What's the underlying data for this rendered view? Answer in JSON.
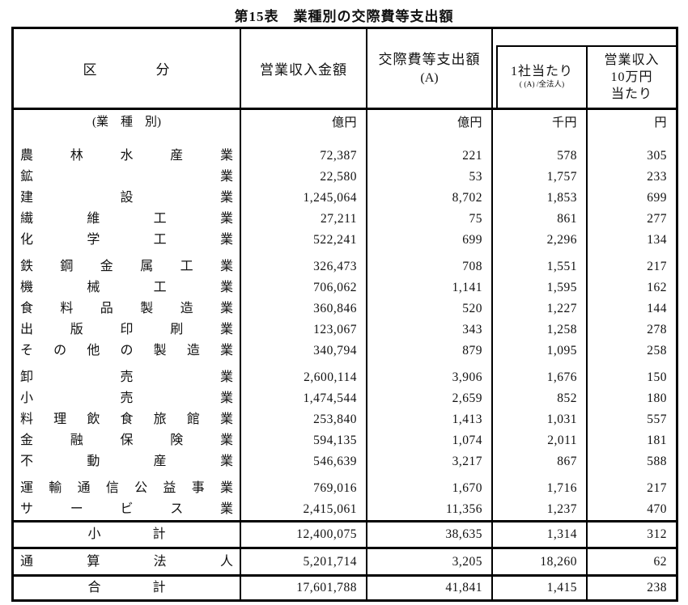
{
  "title": "第15表　業種別の交際費等支出額",
  "header": {
    "category": "区　　　　分",
    "operating_revenue": "営業収入金額",
    "expense_line1": "交際費等支出額",
    "expense_line2": "(A)",
    "per_company": "1社当たり",
    "per_company_sub": "( (A) /全法人)",
    "per_revenue_line1": "営業収入",
    "per_revenue_line2": "10万円",
    "per_revenue_line3": "当たり"
  },
  "units": {
    "label": "(業　種　別)",
    "operating_revenue": "億円",
    "expense": "億円",
    "per_company": "千円",
    "per_revenue": "円"
  },
  "groups": [
    {
      "rows": [
        {
          "label": "農林水産業",
          "operating_revenue": "72,387",
          "expense": "221",
          "per_company": "578",
          "per_revenue": "305"
        },
        {
          "label": "鉱業",
          "operating_revenue": "22,580",
          "expense": "53",
          "per_company": "1,757",
          "per_revenue": "233"
        },
        {
          "label": "建設業",
          "operating_revenue": "1,245,064",
          "expense": "8,702",
          "per_company": "1,853",
          "per_revenue": "699"
        },
        {
          "label": "繊維工業",
          "operating_revenue": "27,211",
          "expense": "75",
          "per_company": "861",
          "per_revenue": "277"
        },
        {
          "label": "化学工業",
          "operating_revenue": "522,241",
          "expense": "699",
          "per_company": "2,296",
          "per_revenue": "134"
        }
      ]
    },
    {
      "rows": [
        {
          "label": "鉄鋼金属工業",
          "operating_revenue": "326,473",
          "expense": "708",
          "per_company": "1,551",
          "per_revenue": "217"
        },
        {
          "label": "機械工業",
          "operating_revenue": "706,062",
          "expense": "1,141",
          "per_company": "1,595",
          "per_revenue": "162"
        },
        {
          "label": "食料品製造業",
          "operating_revenue": "360,846",
          "expense": "520",
          "per_company": "1,227",
          "per_revenue": "144"
        },
        {
          "label": "出版印刷業",
          "operating_revenue": "123,067",
          "expense": "343",
          "per_company": "1,258",
          "per_revenue": "278"
        },
        {
          "label": "その他の製造業",
          "operating_revenue": "340,794",
          "expense": "879",
          "per_company": "1,095",
          "per_revenue": "258"
        }
      ]
    },
    {
      "rows": [
        {
          "label": "卸売業",
          "operating_revenue": "2,600,114",
          "expense": "3,906",
          "per_company": "1,676",
          "per_revenue": "150"
        },
        {
          "label": "小売業",
          "operating_revenue": "1,474,544",
          "expense": "2,659",
          "per_company": "852",
          "per_revenue": "180"
        },
        {
          "label": "料理飲食旅館業",
          "operating_revenue": "253,840",
          "expense": "1,413",
          "per_company": "1,031",
          "per_revenue": "557"
        },
        {
          "label": "金融保険業",
          "operating_revenue": "594,135",
          "expense": "1,074",
          "per_company": "2,011",
          "per_revenue": "181"
        },
        {
          "label": "不動産業",
          "operating_revenue": "546,639",
          "expense": "3,217",
          "per_company": "867",
          "per_revenue": "588"
        }
      ]
    },
    {
      "rows": [
        {
          "label": "運輸通信公益事業",
          "operating_revenue": "769,016",
          "expense": "1,670",
          "per_company": "1,716",
          "per_revenue": "217"
        },
        {
          "label": "サービス業",
          "operating_revenue": "2,415,061",
          "expense": "11,356",
          "per_company": "1,237",
          "per_revenue": "470"
        }
      ]
    }
  ],
  "subtotal": {
    "label": "小　　　　計",
    "operating_revenue": "12,400,075",
    "expense": "38,635",
    "per_company": "1,314",
    "per_revenue": "312"
  },
  "tsusan": {
    "label": "通算法人",
    "operating_revenue": "5,201,714",
    "expense": "3,205",
    "per_company": "18,260",
    "per_revenue": "62"
  },
  "total": {
    "label": "合　　　　計",
    "operating_revenue": "17,601,788",
    "expense": "41,841",
    "per_company": "1,415",
    "per_revenue": "238"
  },
  "colors": {
    "border": "#000000",
    "text": "#111111",
    "background": "#ffffff"
  }
}
